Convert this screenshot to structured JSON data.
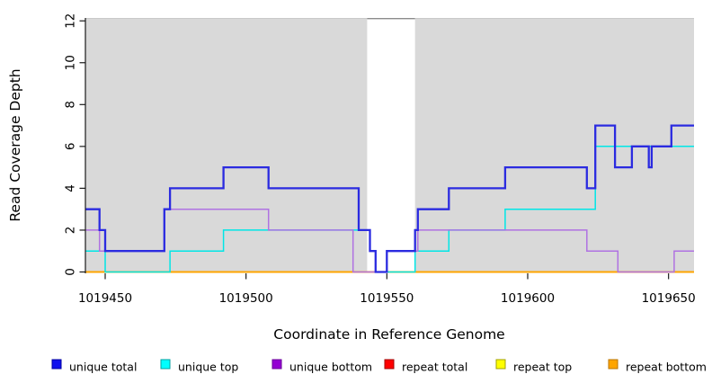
{
  "chart_data": {
    "type": "line",
    "subtype": "step-coverage-plot",
    "title": "",
    "xlabel": "Coordinate in Reference Genome",
    "ylabel": "Read Coverage Depth",
    "xlim": [
      1019443,
      1019659
    ],
    "ylim": [
      0,
      12
    ],
    "x_ticks": [
      1019450,
      1019500,
      1019550,
      1019600,
      1019650
    ],
    "y_ticks": [
      0,
      2,
      4,
      6,
      8,
      10,
      12
    ],
    "grid": false,
    "plot_bg_color": "#d9d9d9",
    "gap_band": {
      "from": 1019543,
      "to": 1019560,
      "color": "#ffffff",
      "top_border_color": "#8c8c8c"
    },
    "series": [
      {
        "name": "repeat total",
        "color": "#e01010",
        "line_width": 1.5,
        "steps": [
          [
            1019443,
            0
          ]
        ]
      },
      {
        "name": "repeat top",
        "color": "#f0f000",
        "line_width": 1.5,
        "steps": [
          [
            1019443,
            0
          ]
        ]
      },
      {
        "name": "repeat bottom",
        "color": "#ffa500",
        "line_width": 2.0,
        "steps": [
          [
            1019443,
            0
          ]
        ]
      },
      {
        "name": "unique top",
        "color": "#00e6e6",
        "line_width": 1.5,
        "steps": [
          [
            1019443,
            1
          ],
          [
            1019450,
            0
          ],
          [
            1019473,
            1
          ],
          [
            1019492,
            2
          ],
          [
            1019544,
            1
          ],
          [
            1019546,
            0
          ],
          [
            1019560,
            1
          ],
          [
            1019572,
            2
          ],
          [
            1019592,
            3
          ],
          [
            1019624,
            6
          ]
        ]
      },
      {
        "name": "unique bottom",
        "color": "#b072e2",
        "line_width": 1.5,
        "steps": [
          [
            1019443,
            2
          ],
          [
            1019448,
            1
          ],
          [
            1019471,
            3
          ],
          [
            1019508,
            2
          ],
          [
            1019538,
            0
          ],
          [
            1019550,
            1
          ],
          [
            1019561,
            2
          ],
          [
            1019621,
            1
          ],
          [
            1019632,
            0
          ],
          [
            1019652,
            1
          ]
        ]
      },
      {
        "name": "unique total",
        "color": "#2b2be0",
        "line_width": 2.3,
        "steps": [
          [
            1019443,
            3
          ],
          [
            1019448,
            2
          ],
          [
            1019450,
            1
          ],
          [
            1019471,
            3
          ],
          [
            1019473,
            4
          ],
          [
            1019492,
            5
          ],
          [
            1019508,
            4
          ],
          [
            1019540,
            2
          ],
          [
            1019544,
            1
          ],
          [
            1019546,
            0
          ],
          [
            1019550,
            1
          ],
          [
            1019560,
            2
          ],
          [
            1019561,
            3
          ],
          [
            1019572,
            4
          ],
          [
            1019592,
            5
          ],
          [
            1019621,
            4
          ],
          [
            1019624,
            7
          ],
          [
            1019631,
            5
          ],
          [
            1019637,
            6
          ],
          [
            1019643,
            5
          ],
          [
            1019644,
            6
          ],
          [
            1019651,
            7
          ]
        ]
      }
    ],
    "legend": {
      "position": "bottom-horizontal",
      "items": [
        {
          "label": "unique total",
          "swatch_fill": "#1010ee",
          "swatch_border": "#0000a0"
        },
        {
          "label": "unique top",
          "swatch_fill": "#00ffff",
          "swatch_border": "#00a0a0"
        },
        {
          "label": "unique bottom",
          "swatch_fill": "#9400d3",
          "swatch_border": "#6a0099"
        },
        {
          "label": "repeat total",
          "swatch_fill": "#ff0000",
          "swatch_border": "#a00000"
        },
        {
          "label": "repeat top",
          "swatch_fill": "#ffff00",
          "swatch_border": "#a0a000"
        },
        {
          "label": "repeat bottom",
          "swatch_fill": "#ffa500",
          "swatch_border": "#b87400"
        }
      ]
    }
  }
}
